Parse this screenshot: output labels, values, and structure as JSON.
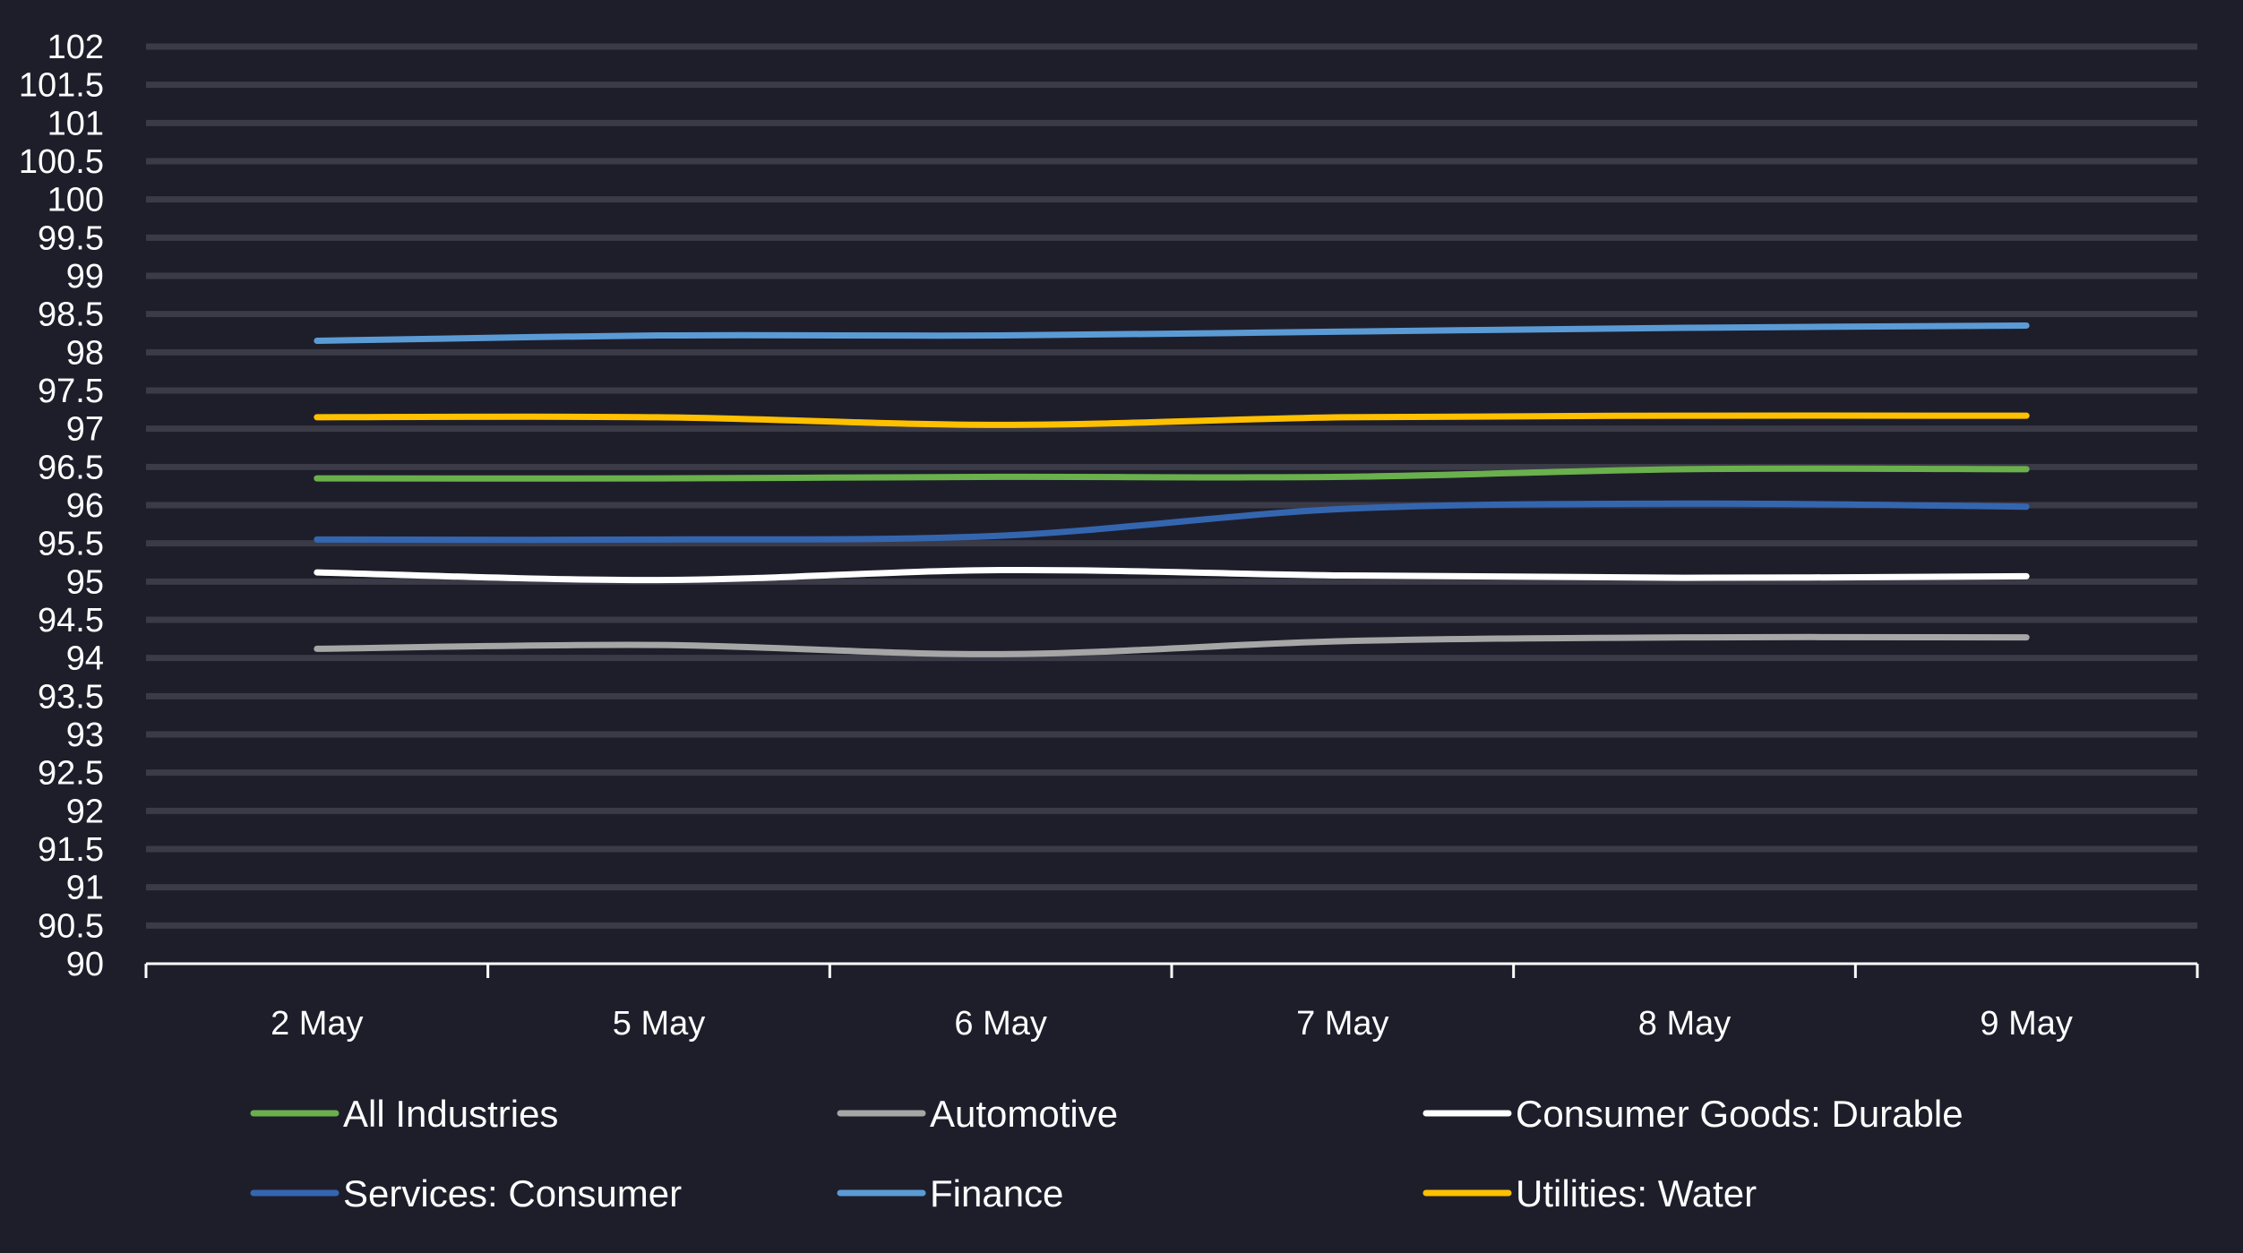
{
  "chart_data": {
    "type": "line",
    "categories": [
      "2 May",
      "5 May",
      "6 May",
      "7 May",
      "8 May",
      "9 May"
    ],
    "ylim": [
      90,
      102
    ],
    "ytick_step": 0.5,
    "y_ticks": [
      "90",
      "90.5",
      "91",
      "91.5",
      "92",
      "92.5",
      "93",
      "93.5",
      "94",
      "94.5",
      "95",
      "95.5",
      "96",
      "96.5",
      "97",
      "97.5",
      "98",
      "98.5",
      "99",
      "99.5",
      "100",
      "100.5",
      "101",
      "101.5",
      "102"
    ],
    "grid": true,
    "legend_position": "bottom",
    "smooth": true,
    "series": [
      {
        "name": "All Industries",
        "color": "#6ab04c",
        "values": [
          96.35,
          96.35,
          96.37,
          96.37,
          96.47,
          96.47
        ]
      },
      {
        "name": "Automotive",
        "color": "#a6a6a6",
        "values": [
          94.12,
          94.17,
          94.05,
          94.22,
          94.27,
          94.27
        ]
      },
      {
        "name": "Consumer Goods: Durable",
        "color": "#ffffff",
        "values": [
          95.12,
          95.02,
          95.15,
          95.08,
          95.05,
          95.07
        ]
      },
      {
        "name": "Services: Consumer",
        "color": "#3466b0",
        "values": [
          95.55,
          95.55,
          95.6,
          95.95,
          96.02,
          95.98
        ]
      },
      {
        "name": "Finance",
        "color": "#5b9bd5",
        "values": [
          98.15,
          98.22,
          98.22,
          98.27,
          98.32,
          98.35
        ]
      },
      {
        "name": "Utilities: Water",
        "color": "#ffc000",
        "values": [
          97.15,
          97.15,
          97.05,
          97.15,
          97.17,
          97.17
        ]
      }
    ]
  }
}
